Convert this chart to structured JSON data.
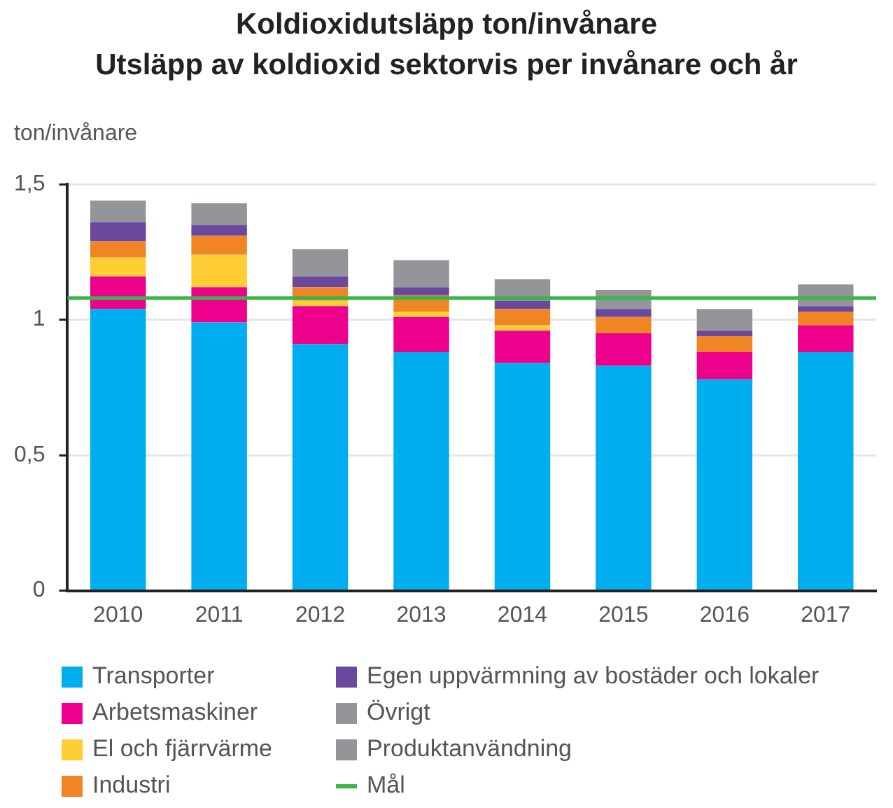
{
  "chart_data": {
    "type": "bar",
    "title": "Koldioxidutsläpp ton/invånare",
    "subtitle": "Utsläpp av koldioxid sektorvis per invånare och år",
    "ylabel": "ton/invånare",
    "categories": [
      "2010",
      "2011",
      "2012",
      "2013",
      "2014",
      "2015",
      "2016",
      "2017"
    ],
    "stacked": true,
    "series": [
      {
        "name": "Transporter",
        "color": "#00adee",
        "values": [
          1.04,
          0.99,
          0.91,
          0.88,
          0.84,
          0.83,
          0.78,
          0.88
        ]
      },
      {
        "name": "Arbetsmaskiner",
        "color": "#ec008c",
        "values": [
          0.12,
          0.13,
          0.14,
          0.13,
          0.12,
          0.12,
          0.1,
          0.1
        ]
      },
      {
        "name": "El och fjärrvärme",
        "color": "#ffcd34",
        "values": [
          0.07,
          0.12,
          0.02,
          0.02,
          0.02,
          0,
          0,
          0
        ]
      },
      {
        "name": "Industri",
        "color": "#f08526",
        "values": [
          0.06,
          0.07,
          0.05,
          0.06,
          0.06,
          0.06,
          0.06,
          0.05
        ]
      },
      {
        "name": "Egen uppvärmning av bostäder och lokaler",
        "color": "#6a489d",
        "values": [
          0.07,
          0.04,
          0.04,
          0.03,
          0.03,
          0.03,
          0.02,
          0.02
        ]
      },
      {
        "name": "Övrigt",
        "color": "#939598",
        "values": [
          0.08,
          0.08,
          0.1,
          0.1,
          0.08,
          0.07,
          0.08,
          0.08
        ]
      },
      {
        "name": "Produktanvändning",
        "color": "#939598",
        "values": [
          null,
          null,
          null,
          null,
          null,
          null,
          null,
          null
        ]
      }
    ],
    "ylim": [
      0,
      1.5
    ],
    "yticks": [
      0,
      {
        "value": 0.5,
        "label": "0,5"
      },
      1,
      {
        "value": 1.5,
        "label": "1,5"
      }
    ],
    "grid": "y",
    "legend": "bottom",
    "ref_lines": [
      {
        "axis": "y",
        "value": 1.08,
        "label": "Mål",
        "color": "#3cb44a"
      }
    ]
  }
}
